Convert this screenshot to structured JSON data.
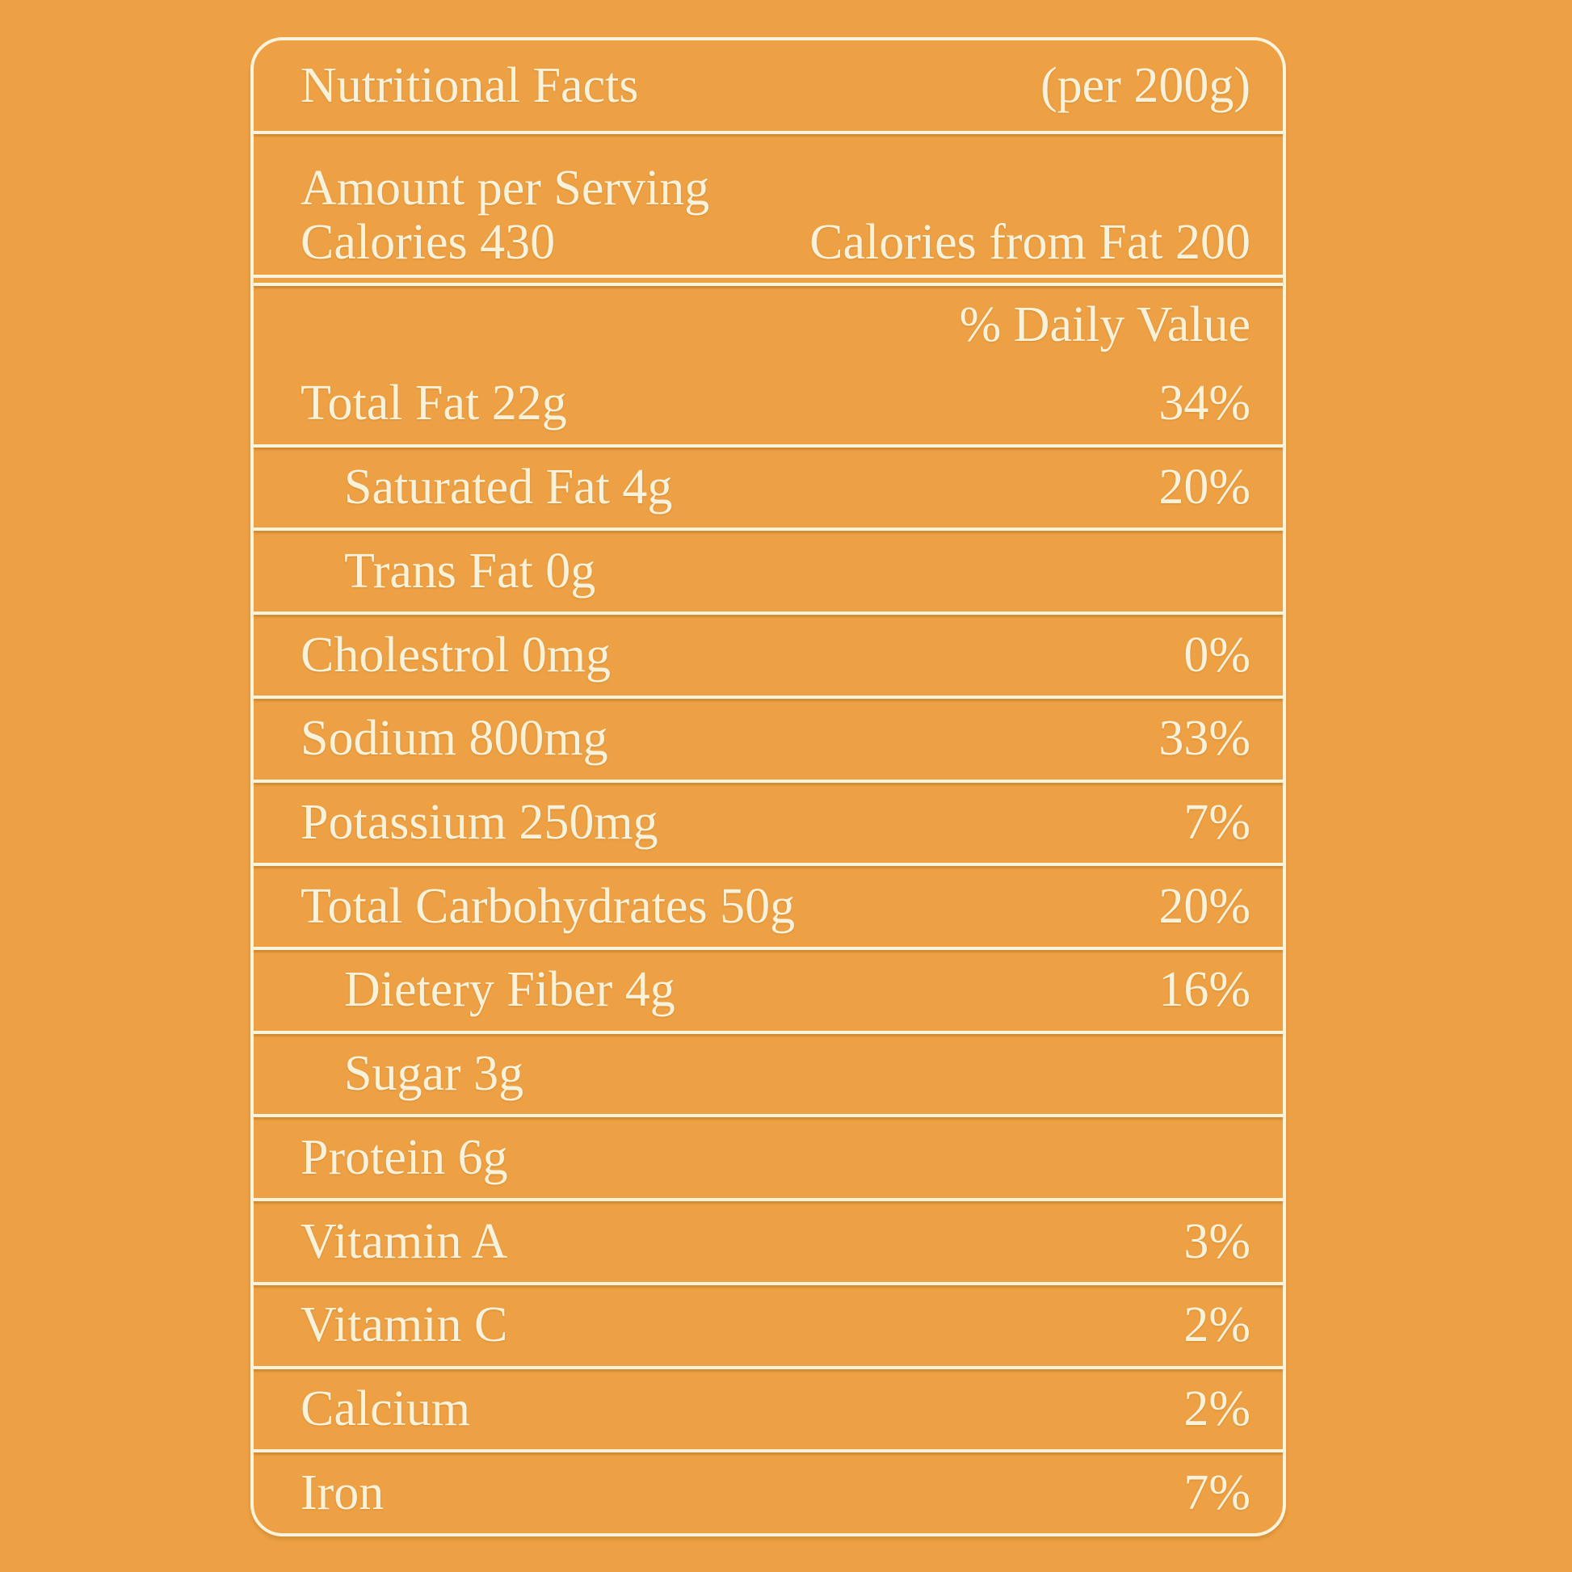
{
  "label": {
    "title": "Nutritional Facts",
    "serving_note": "(per 200g)",
    "amount_heading": "Amount per Serving",
    "calories_label": "Calories 430",
    "calories_from_fat_label": "Calories from Fat 200",
    "daily_value_heading": "% Daily Value",
    "rows": [
      {
        "name": "Total Fat 22g",
        "dv": "34%",
        "indent": false
      },
      {
        "name": "Saturated Fat 4g",
        "dv": "20%",
        "indent": true
      },
      {
        "name": "Trans Fat 0g",
        "dv": "",
        "indent": true
      },
      {
        "name": "Cholestrol 0mg",
        "dv": "0%",
        "indent": false
      },
      {
        "name": "Sodium 800mg",
        "dv": "33%",
        "indent": false
      },
      {
        "name": "Potassium 250mg",
        "dv": "7%",
        "indent": false
      },
      {
        "name": "Total Carbohydrates 50g",
        "dv": "20%",
        "indent": false
      },
      {
        "name": "Dietery Fiber 4g",
        "dv": "16%",
        "indent": true
      },
      {
        "name": "Sugar 3g",
        "dv": "",
        "indent": true
      },
      {
        "name": "Protein 6g",
        "dv": "",
        "indent": false
      },
      {
        "name": "Vitamin A",
        "dv": "3%",
        "indent": false
      },
      {
        "name": "Vitamin C",
        "dv": "2%",
        "indent": false
      },
      {
        "name": "Calcium",
        "dv": "2%",
        "indent": false
      },
      {
        "name": "Iron",
        "dv": "7%",
        "indent": false
      }
    ],
    "colors": {
      "background": "#EEA144",
      "text": "#F9F2DB",
      "line": "#FAF4DD"
    }
  }
}
